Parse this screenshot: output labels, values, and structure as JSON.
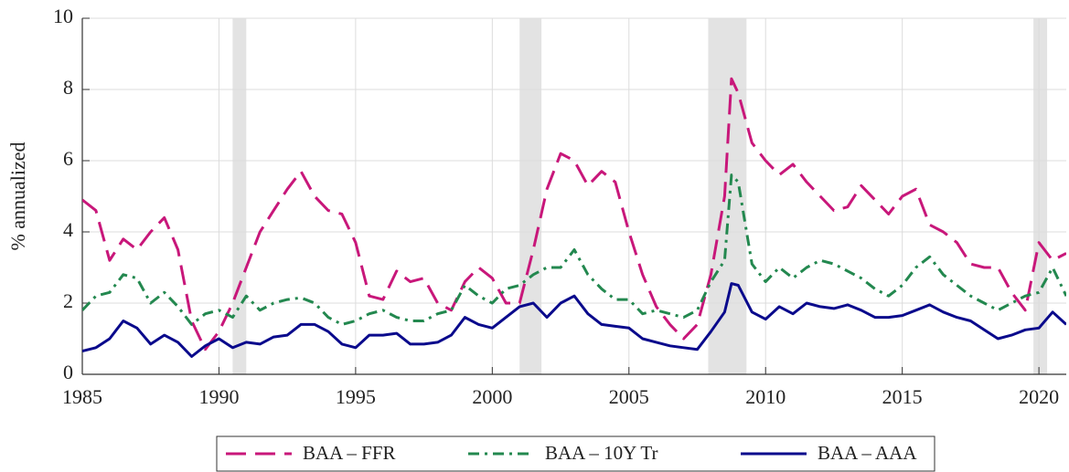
{
  "chart_data": {
    "type": "line",
    "y_label": "% annualized",
    "x": [
      1985,
      1985.5,
      1986,
      1986.5,
      1987,
      1987.5,
      1988,
      1988.5,
      1989,
      1989.5,
      1990,
      1990.5,
      1991,
      1991.5,
      1992,
      1992.5,
      1993,
      1993.5,
      1994,
      1994.5,
      1995,
      1995.5,
      1996,
      1996.5,
      1997,
      1997.5,
      1998,
      1998.5,
      1999,
      1999.5,
      2000,
      2000.5,
      2001,
      2001.5,
      2002,
      2002.5,
      2003,
      2003.5,
      2004,
      2004.5,
      2005,
      2005.5,
      2006,
      2006.5,
      2007,
      2007.5,
      2008,
      2008.5,
      2008.75,
      2009,
      2009.5,
      2010,
      2010.5,
      2011,
      2011.5,
      2012,
      2012.5,
      2013,
      2013.5,
      2014,
      2014.5,
      2015,
      2015.5,
      2016,
      2016.5,
      2017,
      2017.5,
      2018,
      2018.5,
      2019,
      2019.5,
      2020,
      2020.5,
      2021
    ],
    "series": [
      {
        "name": "BAA – FFR",
        "color": "#c8177a",
        "dash": "dashed",
        "values": [
          4.9,
          4.6,
          3.2,
          3.8,
          3.5,
          4.0,
          4.4,
          3.5,
          1.5,
          0.7,
          1.2,
          2.0,
          3.0,
          4.0,
          4.6,
          5.2,
          5.7,
          5.0,
          4.6,
          4.5,
          3.7,
          2.2,
          2.1,
          2.9,
          2.6,
          2.7,
          2.0,
          1.8,
          2.6,
          3.0,
          2.7,
          2.0,
          2.0,
          3.5,
          5.2,
          6.2,
          6.0,
          5.3,
          5.7,
          5.4,
          4.0,
          2.8,
          1.9,
          1.4,
          1.0,
          1.4,
          2.8,
          5.0,
          8.3,
          7.9,
          6.5,
          6.0,
          5.6,
          5.9,
          5.4,
          5.0,
          4.6,
          4.7,
          5.3,
          4.9,
          4.5,
          5.0,
          5.2,
          4.2,
          4.0,
          3.7,
          3.1,
          3.0,
          3.0,
          2.3,
          1.8,
          3.7,
          3.2,
          3.4
        ]
      },
      {
        "name": "BAA – 10Y Tr",
        "color": "#23884f",
        "dash": "dashdot",
        "values": [
          1.8,
          2.2,
          2.3,
          2.8,
          2.7,
          2.0,
          2.3,
          1.9,
          1.4,
          1.7,
          1.8,
          1.6,
          2.2,
          1.8,
          2.0,
          2.1,
          2.15,
          2.0,
          1.6,
          1.4,
          1.5,
          1.7,
          1.8,
          1.6,
          1.5,
          1.5,
          1.7,
          1.8,
          2.5,
          2.2,
          2.0,
          2.4,
          2.5,
          2.8,
          3.0,
          3.0,
          3.5,
          2.8,
          2.4,
          2.1,
          2.1,
          1.7,
          1.8,
          1.7,
          1.6,
          1.8,
          2.6,
          3.2,
          5.6,
          5.4,
          3.1,
          2.6,
          3.0,
          2.7,
          3.0,
          3.2,
          3.1,
          2.9,
          2.7,
          2.4,
          2.2,
          2.5,
          3.0,
          3.3,
          2.8,
          2.5,
          2.2,
          2.0,
          1.8,
          2.0,
          2.2,
          2.3,
          3.0,
          2.2
        ]
      },
      {
        "name": "BAA – AAA",
        "color": "#0a0a8c",
        "dash": "solid",
        "values": [
          0.65,
          0.75,
          1.0,
          1.5,
          1.3,
          0.85,
          1.1,
          0.9,
          0.5,
          0.8,
          1.0,
          0.75,
          0.9,
          0.85,
          1.05,
          1.1,
          1.4,
          1.4,
          1.2,
          0.85,
          0.75,
          1.1,
          1.1,
          1.15,
          0.85,
          0.85,
          0.9,
          1.1,
          1.6,
          1.4,
          1.3,
          1.6,
          1.9,
          2.0,
          1.6,
          2.0,
          2.2,
          1.7,
          1.4,
          1.35,
          1.3,
          1.0,
          0.9,
          0.8,
          0.75,
          0.7,
          1.2,
          1.75,
          2.55,
          2.5,
          1.75,
          1.55,
          1.9,
          1.7,
          2.0,
          1.9,
          1.85,
          1.95,
          1.8,
          1.6,
          1.6,
          1.65,
          1.8,
          1.95,
          1.75,
          1.6,
          1.5,
          1.25,
          1.0,
          1.1,
          1.25,
          1.3,
          1.75,
          1.4
        ]
      }
    ],
    "recessions": [
      [
        1990.5,
        1991.0
      ],
      [
        2001.0,
        2001.8
      ],
      [
        2007.9,
        2009.3
      ],
      [
        2019.8,
        2020.3
      ]
    ],
    "recession_color": "#e3e3e3",
    "xlim": [
      1985,
      2021
    ],
    "xticks": [
      1985,
      1990,
      1995,
      2000,
      2005,
      2010,
      2015,
      2020
    ],
    "ylim": [
      0,
      10
    ],
    "yticks": [
      0,
      2,
      4,
      6,
      8,
      10
    ],
    "grid": true,
    "legend": "bottom"
  }
}
